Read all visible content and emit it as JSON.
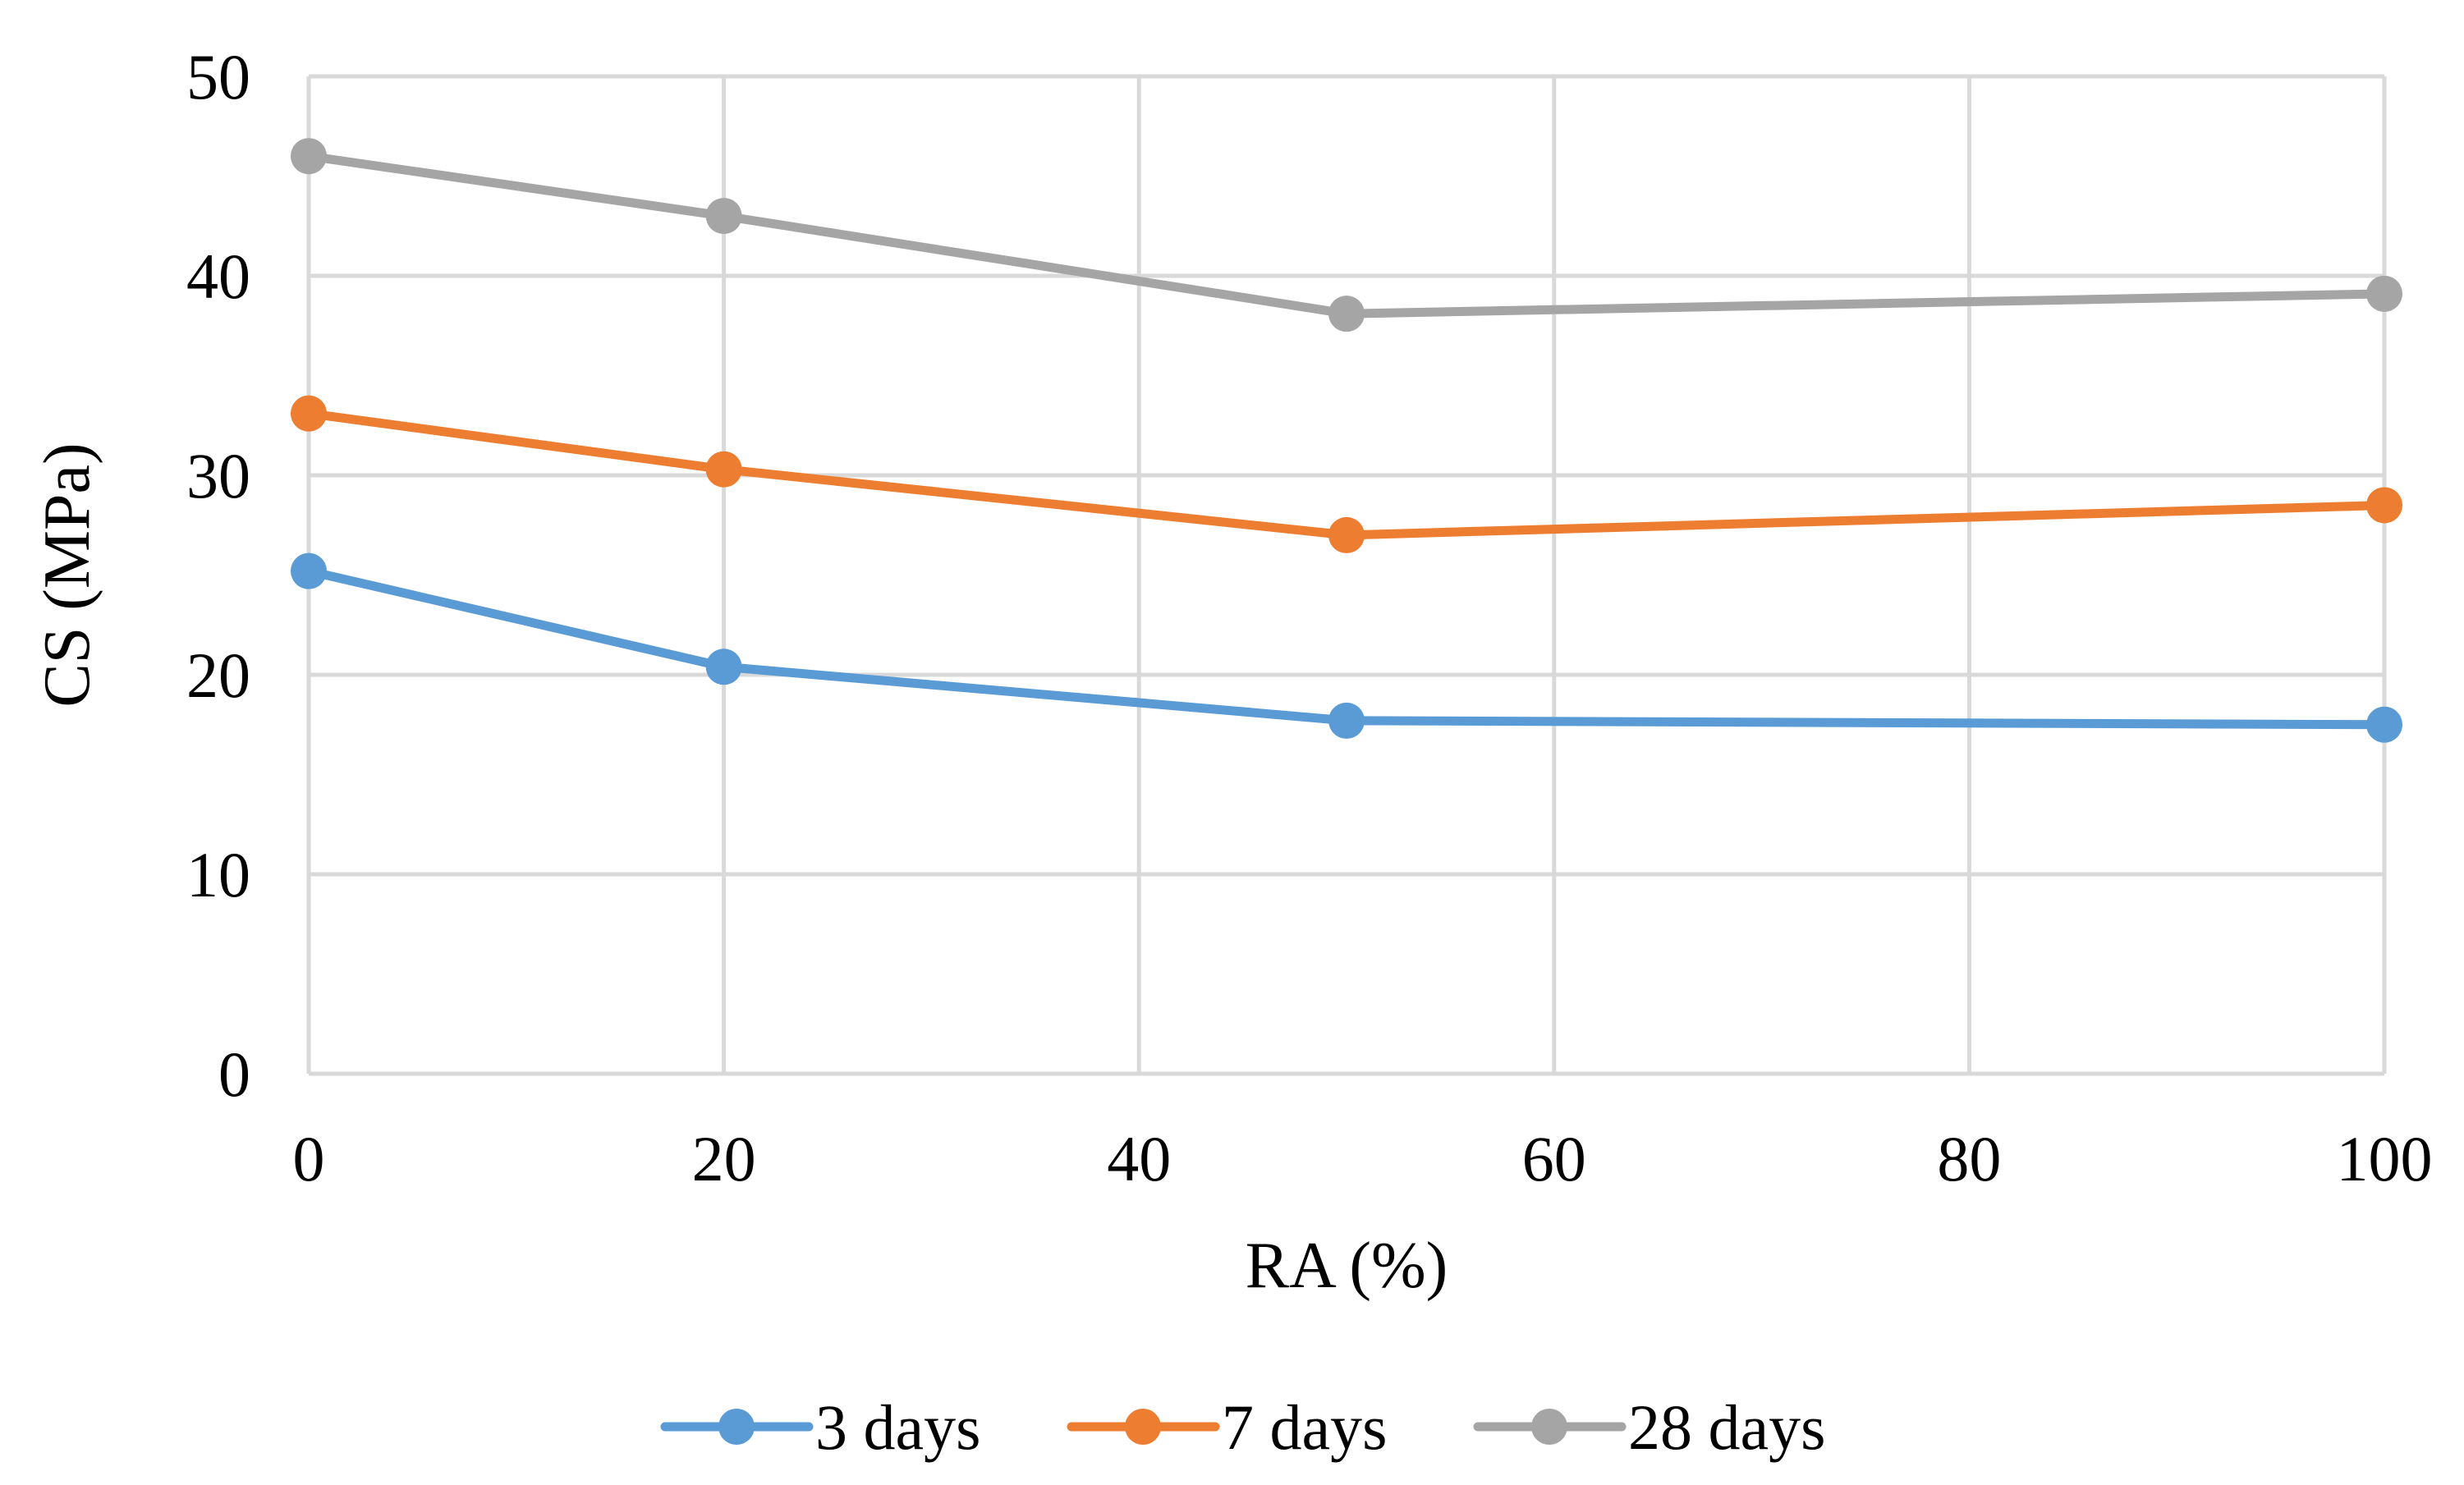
{
  "chart_data": {
    "type": "line",
    "title": "",
    "xlabel": "RA (%)",
    "ylabel": "CS (MPa)",
    "xlim": [
      0,
      100
    ],
    "ylim": [
      0,
      50
    ],
    "x_ticks": [
      0,
      20,
      40,
      60,
      80,
      100
    ],
    "y_ticks": [
      0,
      10,
      20,
      30,
      40,
      50
    ],
    "grid": true,
    "legend_position": "bottom",
    "series": [
      {
        "name": "3 days",
        "color": "#5B9BD5",
        "x": [
          0,
          20,
          50,
          100
        ],
        "values": [
          25.2,
          20.4,
          17.7,
          17.5
        ]
      },
      {
        "name": "7 days",
        "color": "#ED7D31",
        "x": [
          0,
          20,
          50,
          100
        ],
        "values": [
          33.1,
          30.3,
          27.0,
          28.5
        ]
      },
      {
        "name": "28 days",
        "color": "#A5A5A5",
        "x": [
          0,
          20,
          50,
          100
        ],
        "values": [
          46.0,
          43.0,
          38.1,
          39.1
        ]
      }
    ]
  }
}
